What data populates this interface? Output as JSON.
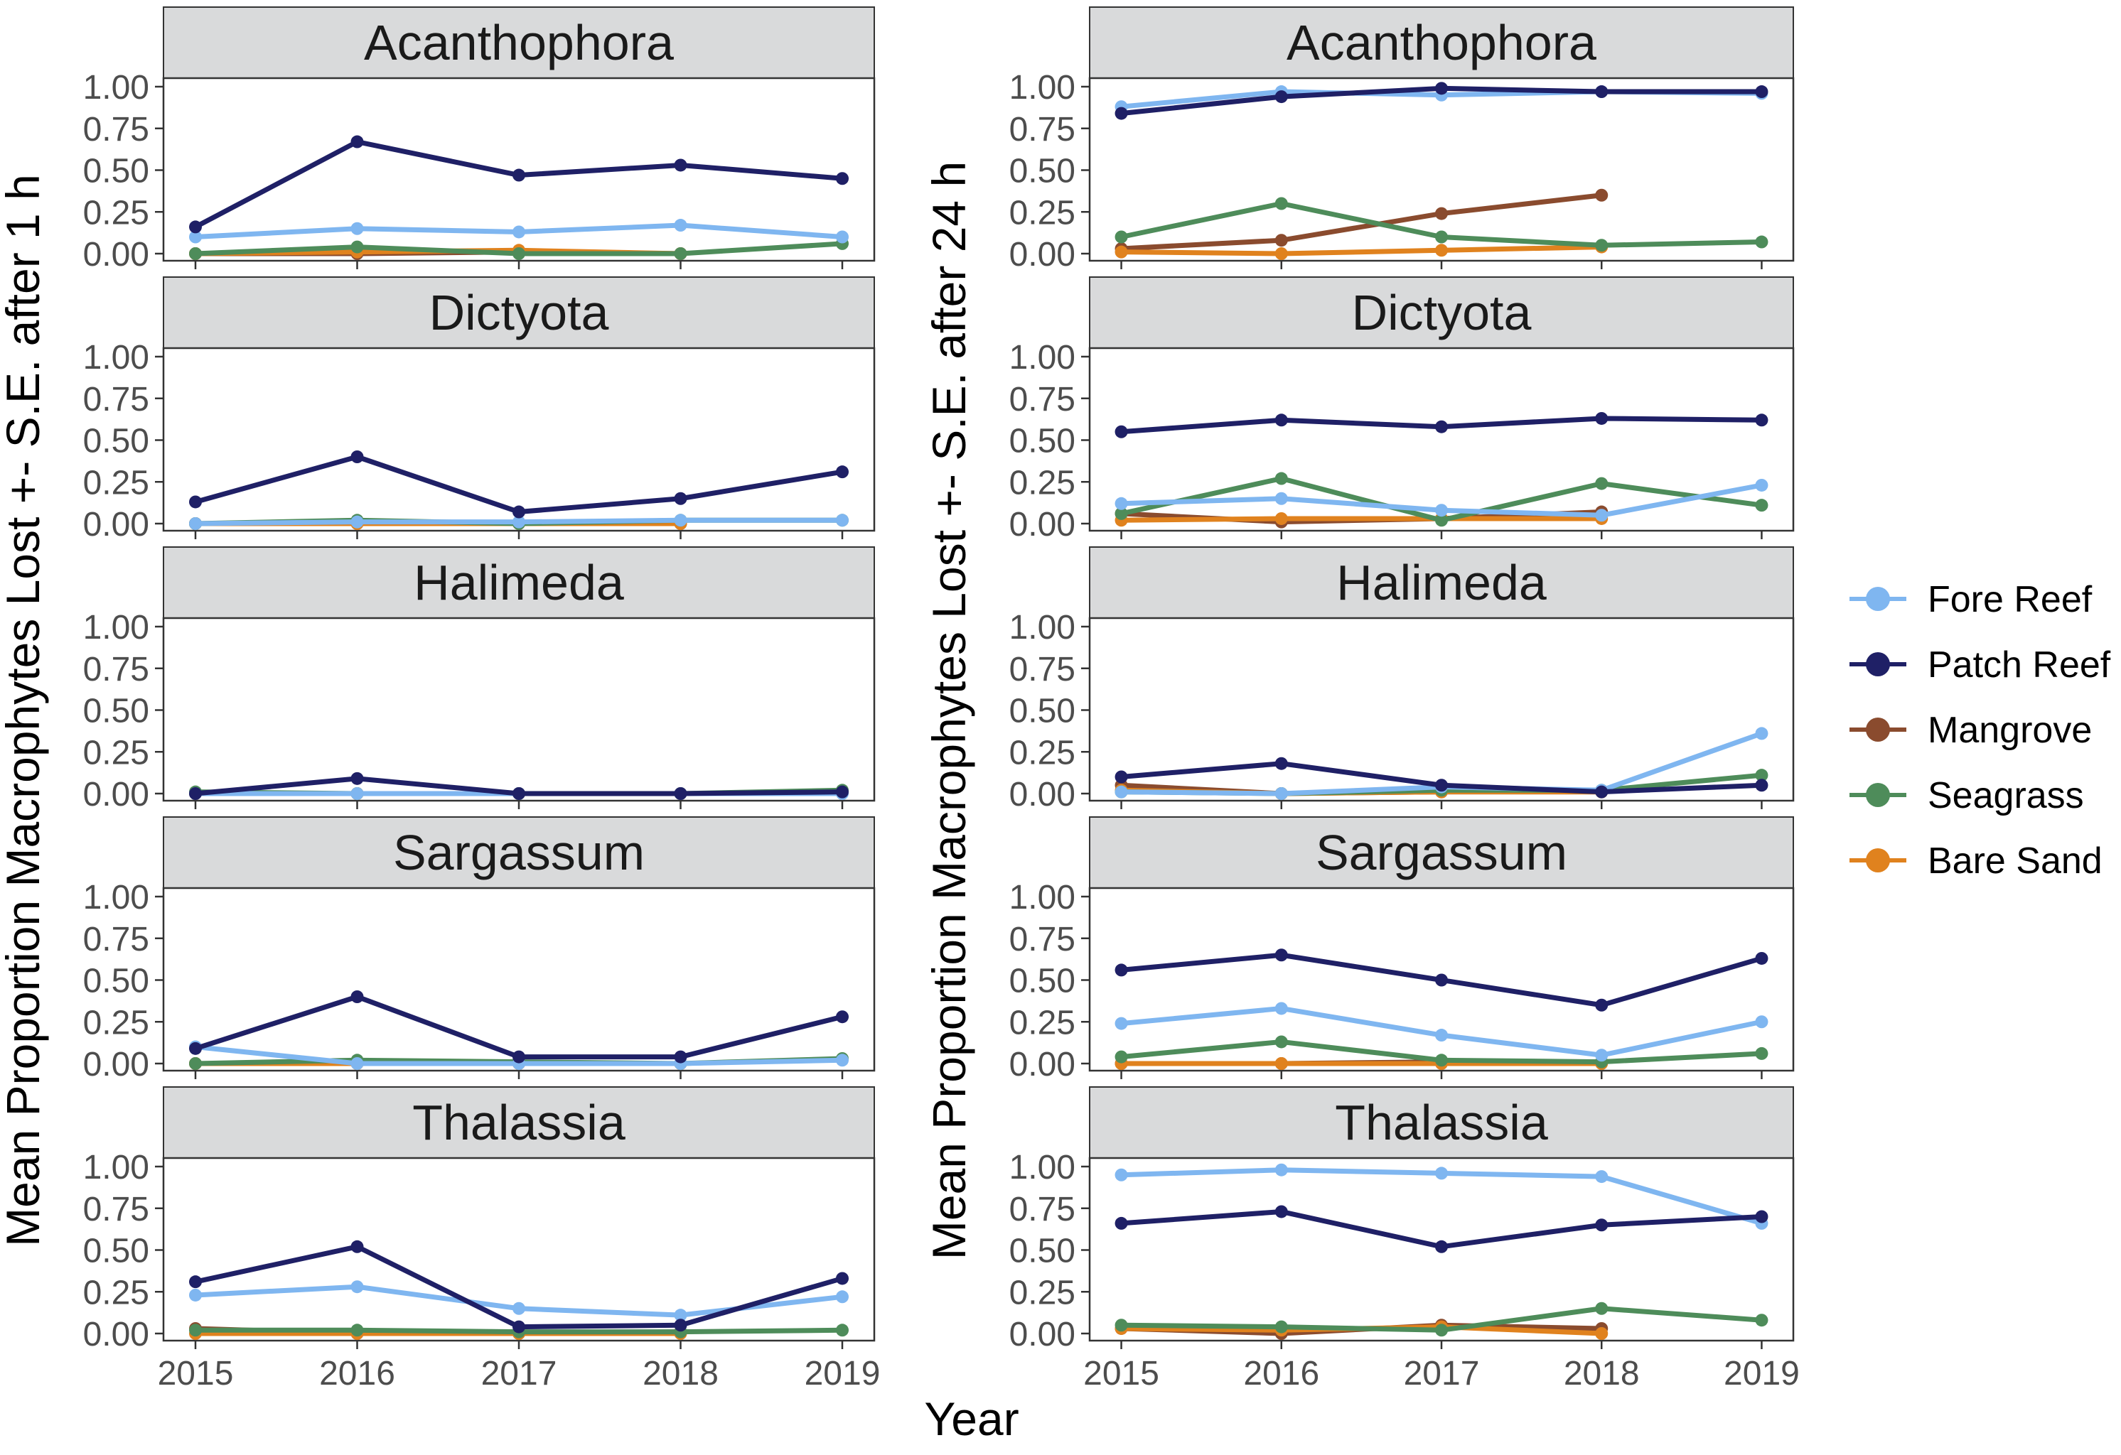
{
  "figure": {
    "xlabel": "Year",
    "ylabel_left": "Mean Proportion Macrophytes Lost +- S.E. after 1 h",
    "ylabel_right": "Mean Proportion Macrophytes Lost +- S.E. after 24 h"
  },
  "legend": [
    {
      "name": "Fore Reef",
      "color": "#7fb6f0"
    },
    {
      "name": "Patch Reef",
      "color": "#1f2066"
    },
    {
      "name": "Mangrove",
      "color": "#8a4b2e"
    },
    {
      "name": "Seagrass",
      "color": "#4e8c5a"
    },
    {
      "name": "Bare Sand",
      "color": "#e0821e"
    }
  ],
  "chart_data": [
    {
      "type": "line",
      "title": "Acanthophora",
      "column": "1 h",
      "x": [
        2015,
        2016,
        2017,
        2018,
        2019
      ],
      "ylim": [
        0,
        1
      ],
      "yticks": [
        "0.00",
        "0.25",
        "0.50",
        "0.75",
        "1.00"
      ],
      "xticks": [
        "2015",
        "2016",
        "2017",
        "2018",
        "2019"
      ],
      "show_xticks": false,
      "series": [
        {
          "name": "Fore Reef",
          "values": [
            0.1,
            0.15,
            0.13,
            0.17,
            0.1
          ]
        },
        {
          "name": "Patch Reef",
          "values": [
            0.16,
            0.67,
            0.47,
            0.53,
            0.45
          ]
        },
        {
          "name": "Mangrove",
          "values": [
            0.0,
            0.0,
            0.01,
            0.0,
            null
          ]
        },
        {
          "name": "Seagrass",
          "values": [
            0.0,
            0.04,
            0.0,
            0.0,
            0.06
          ]
        },
        {
          "name": "Bare Sand",
          "values": [
            0.0,
            0.01,
            0.02,
            0.0,
            null
          ]
        }
      ]
    },
    {
      "type": "line",
      "title": "Dictyota",
      "column": "1 h",
      "x": [
        2015,
        2016,
        2017,
        2018,
        2019
      ],
      "ylim": [
        0,
        1
      ],
      "yticks": [
        "0.00",
        "0.25",
        "0.50",
        "0.75",
        "1.00"
      ],
      "xticks": [
        "2015",
        "2016",
        "2017",
        "2018",
        "2019"
      ],
      "show_xticks": false,
      "series": [
        {
          "name": "Fore Reef",
          "values": [
            0.0,
            0.01,
            0.01,
            0.02,
            0.02
          ]
        },
        {
          "name": "Patch Reef",
          "values": [
            0.13,
            0.4,
            0.07,
            0.15,
            0.31
          ]
        },
        {
          "name": "Mangrove",
          "values": [
            0.0,
            0.0,
            0.0,
            0.0,
            null
          ]
        },
        {
          "name": "Seagrass",
          "values": [
            0.0,
            0.02,
            0.0,
            0.02,
            0.02
          ]
        },
        {
          "name": "Bare Sand",
          "values": [
            0.0,
            0.0,
            0.0,
            0.0,
            null
          ]
        }
      ]
    },
    {
      "type": "line",
      "title": "Halimeda",
      "column": "1 h",
      "x": [
        2015,
        2016,
        2017,
        2018,
        2019
      ],
      "ylim": [
        0,
        1
      ],
      "yticks": [
        "0.00",
        "0.25",
        "0.50",
        "0.75",
        "1.00"
      ],
      "xticks": [
        "2015",
        "2016",
        "2017",
        "2018",
        "2019"
      ],
      "show_xticks": false,
      "series": [
        {
          "name": "Fore Reef",
          "values": [
            0.0,
            0.0,
            0.0,
            0.0,
            0.0
          ]
        },
        {
          "name": "Patch Reef",
          "values": [
            0.0,
            0.09,
            0.0,
            0.0,
            0.01
          ]
        },
        {
          "name": "Mangrove",
          "values": [
            0.0,
            0.0,
            0.0,
            0.0,
            null
          ]
        },
        {
          "name": "Seagrass",
          "values": [
            0.01,
            0.0,
            0.0,
            0.0,
            0.02
          ]
        },
        {
          "name": "Bare Sand",
          "values": [
            0.0,
            0.0,
            0.0,
            0.0,
            null
          ]
        }
      ]
    },
    {
      "type": "line",
      "title": "Sargassum",
      "column": "1 h",
      "x": [
        2015,
        2016,
        2017,
        2018,
        2019
      ],
      "ylim": [
        0,
        1
      ],
      "yticks": [
        "0.00",
        "0.25",
        "0.50",
        "0.75",
        "1.00"
      ],
      "xticks": [
        "2015",
        "2016",
        "2017",
        "2018",
        "2019"
      ],
      "show_xticks": false,
      "series": [
        {
          "name": "Fore Reef",
          "values": [
            0.1,
            0.0,
            0.0,
            0.0,
            0.02
          ]
        },
        {
          "name": "Patch Reef",
          "values": [
            0.09,
            0.4,
            0.04,
            0.04,
            0.28
          ]
        },
        {
          "name": "Mangrove",
          "values": [
            0.0,
            0.0,
            0.0,
            0.0,
            null
          ]
        },
        {
          "name": "Seagrass",
          "values": [
            0.0,
            0.02,
            0.01,
            0.0,
            0.03
          ]
        },
        {
          "name": "Bare Sand",
          "values": [
            0.0,
            0.0,
            0.0,
            0.0,
            null
          ]
        }
      ]
    },
    {
      "type": "line",
      "title": "Thalassia",
      "column": "1 h",
      "x": [
        2015,
        2016,
        2017,
        2018,
        2019
      ],
      "ylim": [
        0,
        1
      ],
      "yticks": [
        "0.00",
        "0.25",
        "0.50",
        "0.75",
        "1.00"
      ],
      "xticks": [
        "2015",
        "2016",
        "2017",
        "2018",
        "2019"
      ],
      "show_xticks": true,
      "series": [
        {
          "name": "Fore Reef",
          "values": [
            0.23,
            0.28,
            0.15,
            0.11,
            0.22
          ]
        },
        {
          "name": "Patch Reef",
          "values": [
            0.31,
            0.52,
            0.04,
            0.05,
            0.33
          ]
        },
        {
          "name": "Mangrove",
          "values": [
            0.03,
            0.0,
            0.0,
            0.01,
            null
          ]
        },
        {
          "name": "Seagrass",
          "values": [
            0.02,
            0.02,
            0.01,
            0.01,
            0.02
          ]
        },
        {
          "name": "Bare Sand",
          "values": [
            0.0,
            0.0,
            0.0,
            0.0,
            null
          ]
        }
      ]
    },
    {
      "type": "line",
      "title": "Acanthophora",
      "column": "24 h",
      "x": [
        2015,
        2016,
        2017,
        2018,
        2019
      ],
      "ylim": [
        0,
        1
      ],
      "yticks": [
        "0.00",
        "0.25",
        "0.50",
        "0.75",
        "1.00"
      ],
      "xticks": [
        "2015",
        "2016",
        "2017",
        "2018",
        "2019"
      ],
      "show_xticks": false,
      "series": [
        {
          "name": "Fore Reef",
          "values": [
            0.88,
            0.97,
            0.95,
            0.97,
            0.96
          ]
        },
        {
          "name": "Patch Reef",
          "values": [
            0.84,
            0.94,
            0.99,
            0.97,
            0.97
          ]
        },
        {
          "name": "Mangrove",
          "values": [
            0.03,
            0.08,
            0.24,
            0.35,
            null
          ]
        },
        {
          "name": "Seagrass",
          "values": [
            0.1,
            0.3,
            0.1,
            0.05,
            0.07
          ]
        },
        {
          "name": "Bare Sand",
          "values": [
            0.01,
            0.0,
            0.02,
            0.04,
            null
          ]
        }
      ]
    },
    {
      "type": "line",
      "title": "Dictyota",
      "column": "24 h",
      "x": [
        2015,
        2016,
        2017,
        2018,
        2019
      ],
      "ylim": [
        0,
        1
      ],
      "yticks": [
        "0.00",
        "0.25",
        "0.50",
        "0.75",
        "1.00"
      ],
      "xticks": [
        "2015",
        "2016",
        "2017",
        "2018",
        "2019"
      ],
      "show_xticks": false,
      "series": [
        {
          "name": "Fore Reef",
          "values": [
            0.12,
            0.15,
            0.08,
            0.05,
            0.23
          ]
        },
        {
          "name": "Patch Reef",
          "values": [
            0.55,
            0.62,
            0.58,
            0.63,
            0.62
          ]
        },
        {
          "name": "Mangrove",
          "values": [
            0.06,
            0.01,
            0.03,
            0.07,
            null
          ]
        },
        {
          "name": "Seagrass",
          "values": [
            0.06,
            0.27,
            0.02,
            0.24,
            0.11
          ]
        },
        {
          "name": "Bare Sand",
          "values": [
            0.02,
            0.03,
            0.03,
            0.03,
            null
          ]
        }
      ]
    },
    {
      "type": "line",
      "title": "Halimeda",
      "column": "24 h",
      "x": [
        2015,
        2016,
        2017,
        2018,
        2019
      ],
      "ylim": [
        0,
        1
      ],
      "yticks": [
        "0.00",
        "0.25",
        "0.50",
        "0.75",
        "1.00"
      ],
      "xticks": [
        "2015",
        "2016",
        "2017",
        "2018",
        "2019"
      ],
      "show_xticks": false,
      "series": [
        {
          "name": "Fore Reef",
          "values": [
            0.01,
            0.0,
            0.04,
            0.02,
            0.36
          ]
        },
        {
          "name": "Patch Reef",
          "values": [
            0.1,
            0.18,
            0.05,
            0.01,
            0.05
          ]
        },
        {
          "name": "Mangrove",
          "values": [
            0.05,
            0.0,
            0.01,
            0.01,
            null
          ]
        },
        {
          "name": "Seagrass",
          "values": [
            0.01,
            0.0,
            0.02,
            0.02,
            0.11
          ]
        },
        {
          "name": "Bare Sand",
          "values": [
            0.02,
            0.0,
            0.01,
            0.01,
            null
          ]
        }
      ]
    },
    {
      "type": "line",
      "title": "Sargassum",
      "column": "24 h",
      "x": [
        2015,
        2016,
        2017,
        2018,
        2019
      ],
      "ylim": [
        0,
        1
      ],
      "yticks": [
        "0.00",
        "0.25",
        "0.50",
        "0.75",
        "1.00"
      ],
      "xticks": [
        "2015",
        "2016",
        "2017",
        "2018",
        "2019"
      ],
      "show_xticks": false,
      "series": [
        {
          "name": "Fore Reef",
          "values": [
            0.24,
            0.33,
            0.17,
            0.05,
            0.25
          ]
        },
        {
          "name": "Patch Reef",
          "values": [
            0.56,
            0.65,
            0.5,
            0.35,
            0.63
          ]
        },
        {
          "name": "Mangrove",
          "values": [
            0.0,
            0.0,
            0.01,
            0.01,
            null
          ]
        },
        {
          "name": "Seagrass",
          "values": [
            0.04,
            0.13,
            0.02,
            0.01,
            0.06
          ]
        },
        {
          "name": "Bare Sand",
          "values": [
            0.0,
            0.0,
            0.0,
            0.0,
            null
          ]
        }
      ]
    },
    {
      "type": "line",
      "title": "Thalassia",
      "column": "24 h",
      "x": [
        2015,
        2016,
        2017,
        2018,
        2019
      ],
      "ylim": [
        0,
        1
      ],
      "yticks": [
        "0.00",
        "0.25",
        "0.50",
        "0.75",
        "1.00"
      ],
      "xticks": [
        "2015",
        "2016",
        "2017",
        "2018",
        "2019"
      ],
      "show_xticks": true,
      "series": [
        {
          "name": "Fore Reef",
          "values": [
            0.95,
            0.98,
            0.96,
            0.94,
            0.66
          ]
        },
        {
          "name": "Patch Reef",
          "values": [
            0.66,
            0.73,
            0.52,
            0.65,
            0.7
          ]
        },
        {
          "name": "Mangrove",
          "values": [
            0.03,
            0.0,
            0.05,
            0.03,
            null
          ]
        },
        {
          "name": "Seagrass",
          "values": [
            0.05,
            0.04,
            0.02,
            0.15,
            0.08
          ]
        },
        {
          "name": "Bare Sand",
          "values": [
            0.03,
            0.02,
            0.04,
            0.0,
            null
          ]
        }
      ]
    }
  ]
}
